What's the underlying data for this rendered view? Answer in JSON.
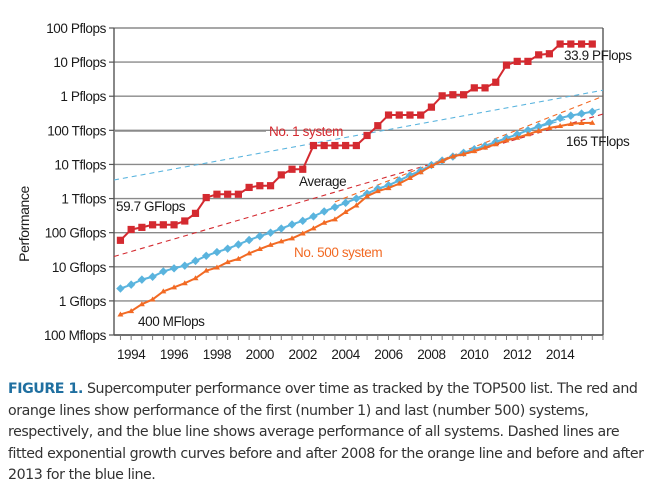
{
  "chart_data": {
    "type": "line",
    "title": "",
    "xlabel": "",
    "ylabel": "Performance",
    "yscale": "log",
    "ylim_gflops": [
      0.1,
      100000000
    ],
    "xlim": [
      1993.2,
      2016.0
    ],
    "grid": true,
    "y_ticks": [
      {
        "value": 100000000,
        "label": "100 Pflops"
      },
      {
        "value": 10000000,
        "label": "10 Pflops"
      },
      {
        "value": 1000000,
        "label": "1 Pflops"
      },
      {
        "value": 100000,
        "label": "100 Tflops"
      },
      {
        "value": 10000,
        "label": "10 Tflops"
      },
      {
        "value": 1000,
        "label": "1 Tflops"
      },
      {
        "value": 100,
        "label": "100 Gflops"
      },
      {
        "value": 10,
        "label": "10 Gflops"
      },
      {
        "value": 1,
        "label": "1 Gflops"
      },
      {
        "value": 0.1,
        "label": "100 Mflops"
      }
    ],
    "x_tick_labels": [
      "1994",
      "1996",
      "1998",
      "2000",
      "2002",
      "2004",
      "2006",
      "2008",
      "2010",
      "2012",
      "2014"
    ],
    "x_tick_values": [
      1994,
      1996,
      1998,
      2000,
      2002,
      2004,
      2006,
      2008,
      2010,
      2012,
      2014
    ],
    "x": [
      1993.5,
      1994.0,
      1994.5,
      1995.0,
      1995.5,
      1996.0,
      1996.5,
      1997.0,
      1997.5,
      1998.0,
      1998.5,
      1999.0,
      1999.5,
      2000.0,
      2000.5,
      2001.0,
      2001.5,
      2002.0,
      2002.5,
      2003.0,
      2003.5,
      2004.0,
      2004.5,
      2005.0,
      2005.5,
      2006.0,
      2006.5,
      2007.0,
      2007.5,
      2008.0,
      2008.5,
      2009.0,
      2009.5,
      2010.0,
      2010.5,
      2011.0,
      2011.5,
      2012.0,
      2012.5,
      2013.0,
      2013.5,
      2014.0,
      2014.5,
      2015.0,
      2015.5
    ],
    "series": [
      {
        "name": "No. 1 system",
        "color": "#d42a30",
        "marker": "square",
        "values": [
          59.7,
          124,
          143,
          170,
          170,
          170,
          220,
          368,
          1068,
          1338,
          1338,
          1338,
          2121,
          2379,
          2379,
          4938,
          7226,
          7226,
          35860,
          35860,
          35860,
          35860,
          35860,
          70720,
          136800,
          280600,
          280600,
          280600,
          280600,
          478200,
          1026000,
          1105000,
          1105000,
          1759000,
          1759000,
          2566000,
          8162000,
          10510000,
          10510000,
          16320000,
          17590000,
          33860000,
          33860000,
          33860000,
          33860000
        ]
      },
      {
        "name": "Average",
        "color": "#5ab4de",
        "marker": "diamond",
        "values": [
          2.3,
          3.0,
          4.2,
          5.1,
          7.3,
          9.0,
          10.8,
          14.9,
          21.0,
          27.0,
          34.0,
          45.0,
          61.0,
          79.0,
          100,
          132,
          174,
          222,
          300,
          420,
          560,
          750,
          1000,
          1400,
          1950,
          2450,
          3400,
          4800,
          6600,
          9600,
          13000,
          17000,
          22000,
          28000,
          35000,
          46000,
          59000,
          76000,
          101000,
          130000,
          170000,
          230000,
          270000,
          310000,
          350000
        ]
      },
      {
        "name": "No. 500 system",
        "color": "#f26a24",
        "marker": "triangle",
        "values": [
          0.4,
          0.5,
          0.8,
          1.1,
          1.9,
          2.5,
          3.3,
          4.6,
          7.7,
          9.5,
          13.7,
          17.1,
          24.7,
          33.1,
          43.8,
          55.4,
          67.8,
          94.3,
          134,
          196,
          245,
          403,
          624,
          1166,
          1646,
          2026,
          2737,
          4005,
          5929,
          9000,
          12640,
          17100,
          20050,
          24670,
          31120,
          39100,
          50940,
          60820,
          76500,
          96620,
          117800,
          133700,
          153400,
          164600,
          165000
        ]
      }
    ],
    "fit_lines": [
      {
        "name": "No. 1 fit (dashed)",
        "color": "#d42a30",
        "x": [
          1993.2,
          2016.0
        ],
        "values": [
          20,
          300000
        ]
      },
      {
        "name": "Average fit before 2013 (dashed)",
        "color": "#5ab4de",
        "x": [
          1993.2,
          2016.0
        ],
        "values": [
          3500,
          1500000
        ]
      },
      {
        "name": "No. 500 fit after 2008 (dashed)",
        "color": "#f26a24",
        "x": [
          2003.5,
          2016.0
        ],
        "values": [
          800,
          1000000
        ]
      },
      {
        "name": "Average fit after 2013 (dashed)",
        "color": "#5ab4de",
        "x": [
          2012.0,
          2016.0
        ],
        "values": [
          80000,
          450000
        ]
      }
    ],
    "annotations": [
      {
        "text": "No. 1 system",
        "color": "#d42a30"
      },
      {
        "text": "Average",
        "color": "#1a1a1a"
      },
      {
        "text": "No. 500 system",
        "color": "#f26a24"
      },
      {
        "text": "59.7 GFlops",
        "color": "#1a1a1a"
      },
      {
        "text": "400 MFlops",
        "color": "#1a1a1a"
      },
      {
        "text": "33.9 PFlops",
        "color": "#1a1a1a"
      },
      {
        "text": "165 TFlops",
        "color": "#1a1a1a"
      }
    ]
  },
  "caption": {
    "figure_label": "FIGURE 1.",
    "text": " Supercomputer performance over time as tracked by the TOP500 list. The red and orange lines show performance of the first (number 1) and last (number 500) systems, respectively, and the blue line shows average performance of all systems. Dashed lines are fitted exponential growth curves before and after 2008 for the orange line and before and after 2013 for the blue line."
  }
}
